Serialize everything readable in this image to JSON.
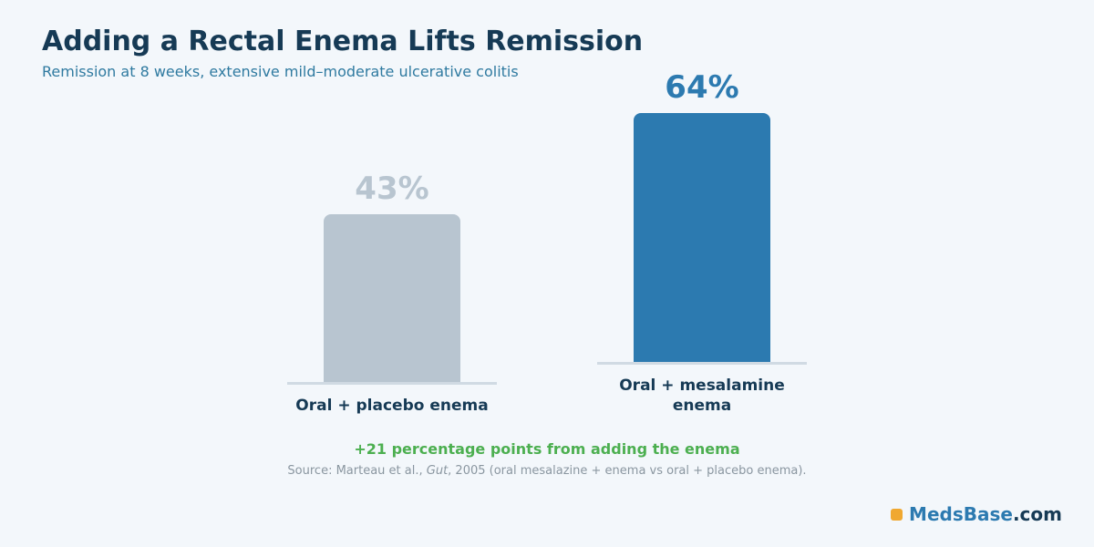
{
  "chart_data": {
    "type": "bar",
    "title": "Adding a Rectal Enema Lifts Remission",
    "subtitle": "Remission at 8 weeks, extensive mild–moderate ulcerative colitis",
    "categories": [
      "Oral + placebo enema",
      "Oral + mesalamine enema"
    ],
    "values": [
      43,
      64
    ],
    "value_labels": [
      "43%",
      "64%"
    ],
    "colors": [
      "#b8c5d0",
      "#2c7ab0"
    ],
    "annotation": "+21 percentage points from adding the enema",
    "source": {
      "prefix": "Source: Marteau et al., ",
      "journal": "Gut",
      "suffix": ", 2005 (oral mesalazine + enema vs oral + placebo enema)."
    }
  },
  "brand": {
    "name": "MedsBase",
    "domain": ".com"
  }
}
